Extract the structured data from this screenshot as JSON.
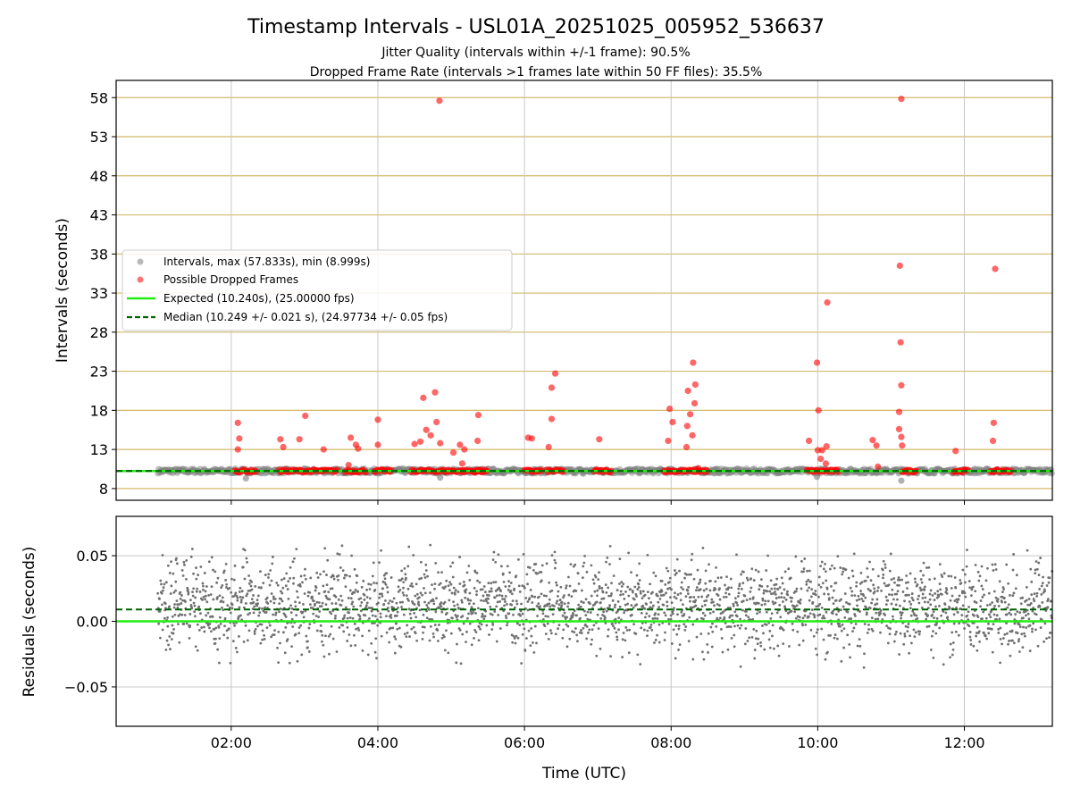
{
  "chart_data": [
    {
      "type": "scatter",
      "title": "Timestamp Intervals - USL01A_20251025_005952_536637",
      "subtitle_lines": [
        "Jitter Quality (intervals within +/-1 frame): 90.5%",
        "Dropped Frame Rate (intervals >1 frames late within 50 FF files): 35.5%"
      ],
      "ylabel": "Intervals (seconds)",
      "xlim_hours": [
        0.43,
        13.2
      ],
      "ylim": [
        6.5,
        60.2
      ],
      "yticks": [
        8,
        13,
        18,
        23,
        28,
        33,
        38,
        43,
        48,
        53,
        58
      ],
      "xticks_hours": [
        2,
        4,
        6,
        8,
        10,
        12
      ],
      "expected": 10.24,
      "median": 10.249,
      "colors": {
        "intervals": "#7f7f7f",
        "dropped": "#ff0000",
        "expected": "#22ee11",
        "median": "#006400",
        "hgrid": "#d4b96a",
        "vgrid": "#c8c8c8"
      },
      "legend": {
        "placement": "center-left",
        "entries": [
          "Intervals, max (57.833s), min (8.999s)",
          "Possible Dropped Frames",
          "Expected (10.240s), (25.00000 fps)",
          "Median (10.249 +/- 0.021 s), (24.97734 +/- 0.05 fps)"
        ]
      },
      "series": [
        {
          "name": "Possible Dropped Frames (notable points, hours UTC / seconds)",
          "points": [
            [
              4.84,
              57.6
            ],
            [
              11.14,
              57.83
            ],
            [
              11.12,
              36.5
            ],
            [
              12.42,
              36.1
            ],
            [
              10.13,
              31.8
            ],
            [
              11.13,
              26.7
            ],
            [
              8.3,
              24.1
            ],
            [
              9.99,
              24.1
            ],
            [
              6.42,
              22.7
            ],
            [
              8.33,
              21.3
            ],
            [
              6.37,
              20.9
            ],
            [
              11.14,
              21.2
            ],
            [
              8.23,
              20.5
            ],
            [
              4.78,
              20.3
            ],
            [
              4.62,
              19.6
            ],
            [
              8.32,
              18.9
            ],
            [
              7.98,
              18.2
            ],
            [
              10.01,
              18.0
            ],
            [
              11.11,
              17.8
            ],
            [
              3.01,
              17.3
            ],
            [
              5.37,
              17.4
            ],
            [
              8.26,
              17.5
            ],
            [
              4.0,
              16.8
            ],
            [
              6.37,
              16.9
            ],
            [
              2.09,
              16.4
            ],
            [
              4.8,
              16.5
            ],
            [
              8.02,
              16.5
            ],
            [
              8.22,
              16.0
            ],
            [
              12.4,
              16.4
            ],
            [
              4.66,
              15.5
            ],
            [
              11.11,
              15.6
            ],
            [
              3.63,
              14.5
            ],
            [
              4.72,
              14.8
            ],
            [
              6.05,
              14.5
            ],
            [
              8.29,
              14.8
            ],
            [
              2.11,
              14.4
            ],
            [
              4.58,
              14.0
            ],
            [
              2.67,
              14.3
            ],
            [
              2.93,
              14.3
            ],
            [
              6.1,
              14.4
            ],
            [
              7.02,
              14.3
            ],
            [
              7.96,
              14.1
            ],
            [
              9.88,
              14.1
            ],
            [
              10.75,
              14.2
            ],
            [
              11.14,
              14.6
            ],
            [
              12.39,
              14.1
            ],
            [
              4.85,
              13.8
            ],
            [
              5.12,
              13.6
            ],
            [
              5.36,
              14.1
            ],
            [
              3.7,
              13.6
            ],
            [
              4.0,
              13.6
            ],
            [
              4.5,
              13.7
            ],
            [
              8.21,
              13.3
            ],
            [
              10.12,
              13.4
            ],
            [
              10.8,
              13.5
            ],
            [
              11.15,
              13.5
            ],
            [
              11.88,
              12.8
            ],
            [
              3.26,
              13.0
            ],
            [
              2.71,
              13.3
            ],
            [
              6.33,
              13.3
            ],
            [
              10.0,
              12.9
            ],
            [
              2.09,
              13.0
            ],
            [
              5.18,
              13.0
            ],
            [
              3.73,
              13.1
            ],
            [
              10.06,
              12.9
            ],
            [
              5.03,
              12.6
            ],
            [
              10.04,
              11.8
            ],
            [
              5.15,
              11.2
            ],
            [
              3.6,
              11.0
            ],
            [
              10.11,
              11.2
            ],
            [
              8.37,
              10.6
            ],
            [
              10.82,
              10.8
            ]
          ]
        },
        {
          "name": "Intervals",
          "note": "dense band around 10.2 s from 01:00 to 13:12 UTC",
          "points": [
            [
              2.2,
              9.3
            ],
            [
              4.85,
              9.4
            ],
            [
              9.99,
              9.5
            ],
            [
              11.14,
              9.0
            ],
            [
              6.8,
              9.9
            ],
            [
              8.6,
              10.0
            ]
          ]
        }
      ]
    },
    {
      "type": "scatter",
      "xlabel": "Time (UTC)",
      "ylabel": "Residuals (seconds)",
      "xlim_hours": [
        0.43,
        13.2
      ],
      "ylim": [
        -0.08,
        0.08
      ],
      "yticks": [
        0.05,
        0.0,
        -0.05
      ],
      "ytick_labels": [
        "0.05",
        "0.00",
        "−0.05"
      ],
      "xticks_hours": [
        2,
        4,
        6,
        8,
        10,
        12
      ],
      "xtick_labels": [
        "02:00",
        "04:00",
        "06:00",
        "08:00",
        "10:00",
        "12:00"
      ],
      "expected": 0.0,
      "median": 0.009,
      "residual_distribution": {
        "center": 0.012,
        "spread": 0.017,
        "start_hour": 1.0,
        "end_hour": 13.2,
        "count": 2600
      },
      "colors": {
        "points": "#707070",
        "expected": "#22ee11",
        "median": "#006400",
        "grid": "#c8c8c8"
      }
    }
  ]
}
